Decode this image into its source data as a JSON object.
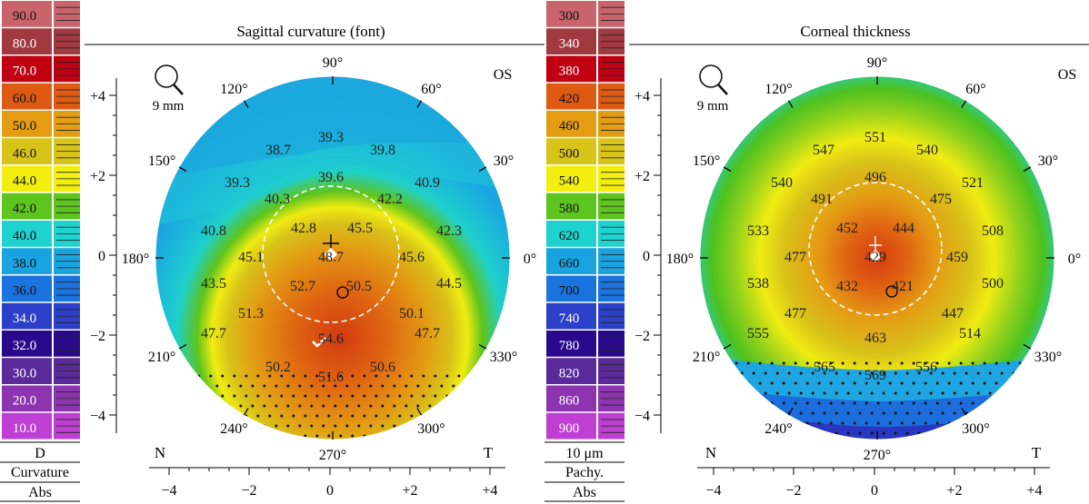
{
  "left": {
    "title": "Sagittal curvature (font)",
    "zoom_label": "9 mm",
    "eye": "OS",
    "nasal_label": "N",
    "temporal_label": "T",
    "scale": {
      "levels": [
        "90.0",
        "80.0",
        "70.0",
        "60.0",
        "50.0",
        "46.0",
        "44.0",
        "42.0",
        "40.0",
        "38.0",
        "36.0",
        "34.0",
        "32.0",
        "30.0",
        "20.0",
        "10.0"
      ],
      "colors": [
        "#c9656a",
        "#a13a40",
        "#c00012",
        "#de5a12",
        "#e49c12",
        "#d8c418",
        "#f2ef10",
        "#5ec41e",
        "#1ed2cf",
        "#19a3e0",
        "#1b73de",
        "#2c3fc8",
        "#2a0a8c",
        "#5a2a9a",
        "#8d34b0",
        "#be3fd2"
      ],
      "unit": "D",
      "type": "Curvature",
      "mode": "Abs"
    },
    "angles": [
      "90°",
      "60°",
      "30°",
      "0°",
      "330°",
      "300°",
      "270°",
      "240°",
      "210°",
      "180°",
      "150°",
      "120°"
    ],
    "y_ticks": [
      "+4",
      "+2",
      "0",
      "−2",
      "−4"
    ],
    "x_ticks": [
      "−4",
      "−2",
      "0",
      "+2",
      "+4"
    ],
    "values": [
      "39.3",
      "38.7",
      "39.8",
      "39.3",
      "39.6",
      "40.9",
      "40.3",
      "42.2",
      "40.8",
      "42.8",
      "45.5",
      "42.3",
      "45.1",
      "48.7",
      "45.6",
      "43.5",
      "52.7",
      "50.5",
      "44.5",
      "51.3",
      "50.1",
      "47.7",
      "47.7",
      "54.6",
      "50.2",
      "50.6",
      "51.6"
    ]
  },
  "right": {
    "title": "Corneal thickness",
    "zoom_label": "9 mm",
    "eye": "OS",
    "nasal_label": "N",
    "temporal_label": "T",
    "scale": {
      "levels": [
        "300",
        "340",
        "380",
        "420",
        "460",
        "500",
        "540",
        "580",
        "620",
        "660",
        "700",
        "740",
        "780",
        "820",
        "860",
        "900"
      ],
      "colors": [
        "#c9656a",
        "#a13a40",
        "#c00012",
        "#de5a12",
        "#e49c12",
        "#d8c418",
        "#f2ef10",
        "#5ec41e",
        "#1ed2cf",
        "#19a3e0",
        "#1b73de",
        "#2c3fc8",
        "#2a0a8c",
        "#5a2a9a",
        "#8d34b0",
        "#be3fd2"
      ],
      "unit": "10 μm",
      "type": "Pachy.",
      "mode": "Abs"
    },
    "angles": [
      "90°",
      "60°",
      "30°",
      "0°",
      "330°",
      "300°",
      "270°",
      "240°",
      "210°",
      "180°",
      "150°",
      "120°"
    ],
    "y_ticks": [
      "+4",
      "+2",
      "0",
      "−2",
      "−4"
    ],
    "x_ticks": [
      "−4",
      "−2",
      "0",
      "+2",
      "+4"
    ],
    "values": [
      "551",
      "547",
      "540",
      "496",
      "540",
      "521",
      "491",
      "475",
      "533",
      "452",
      "444",
      "508",
      "477",
      "429",
      "459",
      "538",
      "432",
      "421",
      "500",
      "477",
      "447",
      "555",
      "463",
      "514",
      "565",
      "569",
      "556"
    ]
  }
}
